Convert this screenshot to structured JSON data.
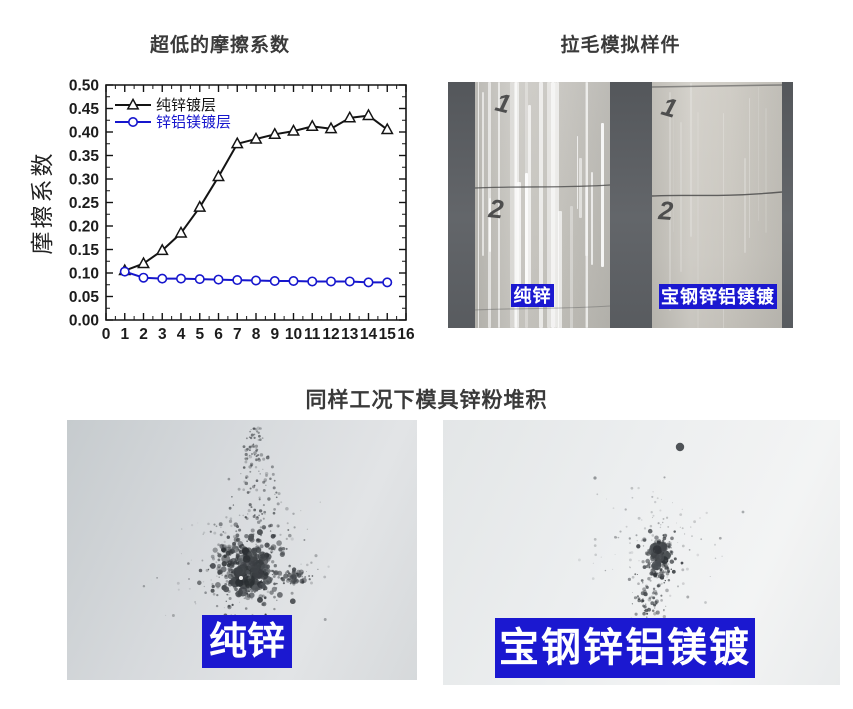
{
  "chart_data": {
    "type": "line",
    "title": "超低的摩擦系数",
    "xlabel": "",
    "ylabel": "摩擦系数",
    "xlim": [
      0,
      16
    ],
    "ylim": [
      0.0,
      0.5
    ],
    "xticks": [
      0,
      1,
      2,
      3,
      4,
      5,
      6,
      7,
      8,
      9,
      10,
      11,
      12,
      13,
      14,
      15,
      16
    ],
    "yticks": [
      0.0,
      0.05,
      0.1,
      0.15,
      0.2,
      0.25,
      0.3,
      0.35,
      0.4,
      0.45,
      0.5
    ],
    "grid": false,
    "legend_position": "upper-left",
    "x": [
      1,
      2,
      3,
      4,
      5,
      6,
      7,
      8,
      9,
      10,
      11,
      12,
      13,
      14,
      15
    ],
    "series": [
      {
        "name": "纯锌镀层",
        "color": "#141414",
        "marker": "triangle",
        "values": [
          0.105,
          0.12,
          0.148,
          0.185,
          0.24,
          0.305,
          0.375,
          0.385,
          0.395,
          0.402,
          0.412,
          0.407,
          0.43,
          0.435,
          0.405
        ]
      },
      {
        "name": "锌铝镁镀层",
        "color": "#1616cd",
        "marker": "circle",
        "values": [
          0.103,
          0.09,
          0.088,
          0.088,
          0.087,
          0.086,
          0.085,
          0.084,
          0.083,
          0.083,
          0.082,
          0.082,
          0.082,
          0.08,
          0.08
        ]
      }
    ]
  },
  "top_right_photo": {
    "title": "拉毛模拟样件",
    "left_strip_label": "纯锌",
    "right_strip_label": "宝钢锌铝镁镀",
    "left_strip_marks": [
      "1",
      "2"
    ],
    "right_strip_marks": [
      "1",
      "2"
    ]
  },
  "bottom_section": {
    "title": "同样工况下模具锌粉堆积",
    "left_photo_label": "纯锌",
    "right_photo_label": "宝钢锌铝镁镀"
  },
  "colors": {
    "background": "#ffffff",
    "title_text": "#3a3a3a",
    "pure_zinc_line": "#141414",
    "zam_line": "#1616cd",
    "label_chip_bg": "#1b18d0",
    "label_chip_text": "#ffffff"
  }
}
